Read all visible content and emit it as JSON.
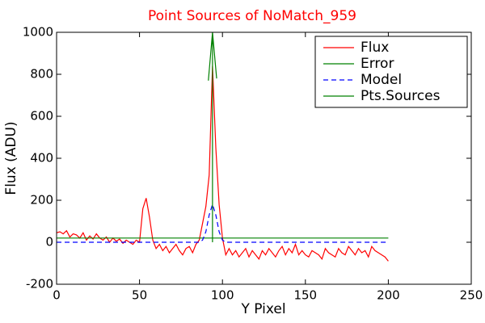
{
  "chart_data": {
    "type": "line",
    "title": "Point Sources of NoMatch_959",
    "title_color": "#ff0000",
    "xlabel": "Y Pixel",
    "ylabel": "Flux (ADU)",
    "xlim": [
      0,
      250
    ],
    "xticks": [
      0,
      50,
      100,
      150,
      200,
      250
    ],
    "ylim": [
      -200,
      1000
    ],
    "yticks": [
      -200,
      0,
      200,
      400,
      600,
      800,
      1000
    ],
    "legend": "upper right",
    "series": [
      {
        "name": "Flux",
        "color": "#ff0000",
        "style": "solid",
        "x": [
          0,
          2,
          4,
          6,
          8,
          10,
          12,
          14,
          16,
          18,
          20,
          22,
          24,
          26,
          28,
          30,
          32,
          34,
          36,
          38,
          40,
          42,
          44,
          46,
          48,
          50,
          52,
          54,
          56,
          58,
          60,
          62,
          64,
          66,
          68,
          70,
          72,
          74,
          76,
          78,
          80,
          82,
          84,
          86,
          88,
          90,
          92,
          94,
          96,
          98,
          100,
          102,
          104,
          106,
          108,
          110,
          112,
          114,
          116,
          118,
          120,
          122,
          124,
          126,
          128,
          130,
          132,
          134,
          136,
          138,
          140,
          142,
          144,
          146,
          148,
          150,
          152,
          154,
          156,
          158,
          160,
          162,
          164,
          166,
          168,
          170,
          172,
          174,
          176,
          178,
          180,
          182,
          184,
          186,
          188,
          190,
          192,
          194,
          196,
          198,
          200
        ],
        "values": [
          45,
          50,
          40,
          55,
          25,
          40,
          35,
          20,
          45,
          10,
          30,
          15,
          40,
          20,
          10,
          25,
          0,
          20,
          5,
          15,
          -5,
          10,
          0,
          -10,
          10,
          0,
          160,
          210,
          120,
          10,
          -30,
          -10,
          -40,
          -20,
          -50,
          -30,
          -10,
          -40,
          -60,
          -30,
          -20,
          -50,
          -10,
          10,
          90,
          170,
          320,
          840,
          450,
          180,
          20,
          -60,
          -30,
          -60,
          -40,
          -70,
          -50,
          -30,
          -70,
          -40,
          -60,
          -80,
          -40,
          -60,
          -30,
          -50,
          -70,
          -40,
          -20,
          -60,
          -30,
          -50,
          -10,
          -60,
          -40,
          -60,
          -70,
          -40,
          -50,
          -60,
          -80,
          -30,
          -50,
          -60,
          -70,
          -30,
          -50,
          -60,
          -20,
          -40,
          -60,
          -30,
          -50,
          -40,
          -70,
          -20,
          -40,
          -50,
          -60,
          -70,
          -90
        ]
      },
      {
        "name": "Error",
        "color": "#008000",
        "style": "solid",
        "x": [
          0,
          200
        ],
        "values": [
          20,
          20
        ]
      },
      {
        "name": "Model",
        "color": "#0000ff",
        "style": "dashed",
        "x": [
          0,
          86,
          88,
          90,
          92,
          94,
          96,
          98,
          100,
          102,
          200
        ],
        "values": [
          0,
          0,
          10,
          50,
          130,
          180,
          130,
          50,
          10,
          0,
          0
        ]
      },
      {
        "name": "Pts.Sources",
        "color": "#008000",
        "style": "solid",
        "x": [
          94,
          94,
          91.5,
          94,
          96.5
        ],
        "values": [
          0,
          1000,
          770,
          1000,
          780
        ]
      }
    ]
  }
}
